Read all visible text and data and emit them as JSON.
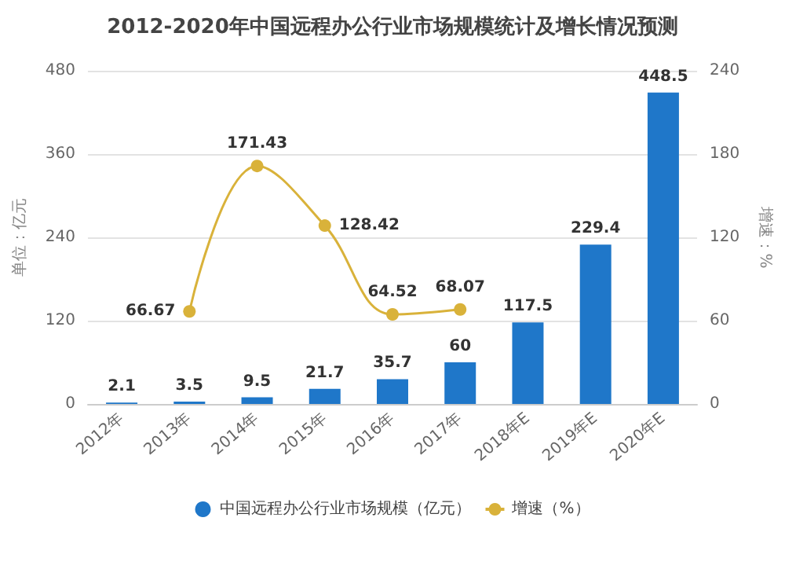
{
  "chart_data": {
    "type": "bar",
    "title": "2012-2020年中国远程办公行业市场规模统计及增长情况预测",
    "ylabel": "单位：亿元",
    "y2label": "增速：%",
    "categories": [
      "2012年",
      "2013年",
      "2014年",
      "2015年",
      "2016年",
      "2017年",
      "2018年E",
      "2019年E",
      "2020年E"
    ],
    "series": [
      {
        "name": "中国远程办公行业市场规模（亿元）",
        "color": "#1f77c9",
        "values": [
          2.1,
          3.5,
          9.5,
          21.7,
          35.7,
          60,
          117.5,
          229.4,
          448.5
        ],
        "value_labels": [
          "2.1",
          "3.5",
          "9.5",
          "21.7",
          "35.7",
          "60",
          "117.5",
          "229.4",
          "448.5"
        ]
      },
      {
        "name": "增速（%）",
        "type": "line",
        "axis": "y2",
        "color": "#d9b23a",
        "values": [
          null,
          66.67,
          171.43,
          128.42,
          64.52,
          68.07,
          null,
          null,
          null
        ],
        "value_labels": [
          null,
          "66.67",
          "171.43",
          "128.42",
          "64.52",
          "68.07",
          null,
          null,
          null
        ]
      }
    ],
    "ylim": [
      0,
      480
    ],
    "yticks": [
      0,
      120,
      240,
      360,
      480
    ],
    "y2lim": [
      0,
      240
    ],
    "y2ticks": [
      0,
      60,
      120,
      180,
      240
    ],
    "grid": "y",
    "legend": "bottom",
    "marker": "circle"
  }
}
